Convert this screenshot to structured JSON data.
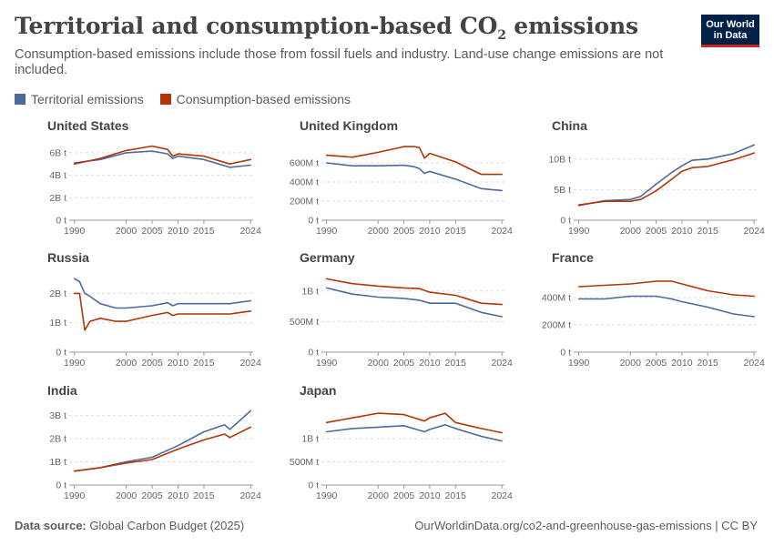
{
  "header": {
    "title_main": "Territorial and consumption-based CO",
    "title_sub": "2",
    "title_tail": " emissions",
    "subtitle": "Consumption-based emissions include those from fossil fuels and industry. Land-use change emissions are not included.",
    "logo_line1": "Our World",
    "logo_line2": "in Data"
  },
  "legend": {
    "items": [
      {
        "label": "Territorial emissions",
        "color": "#4c6a9c"
      },
      {
        "label": "Consumption-based emissions",
        "color": "#b13507"
      }
    ]
  },
  "footer": {
    "source_label": "Data source:",
    "source_value": " Global Carbon Budget (2025)",
    "url": "OurWorldinData.org/co2-and-greenhouse-gas-emissions | CC BY"
  },
  "chart_data": [
    {
      "type": "line",
      "title": "United States",
      "x": [
        1990,
        1995,
        2000,
        2005,
        2008,
        2009,
        2010,
        2015,
        2020,
        2024
      ],
      "ylim": [
        0,
        6800000000.0
      ],
      "yticks": [
        {
          "value": 0,
          "label": "0 t"
        },
        {
          "value": 2000000000.0,
          "label": "2B t"
        },
        {
          "value": 4000000000.0,
          "label": "4B t"
        },
        {
          "value": 6000000000.0,
          "label": "6B t"
        }
      ],
      "xticks": [
        1990,
        2000,
        2005,
        2010,
        2015,
        2024
      ],
      "series": [
        {
          "name": "Territorial emissions",
          "values": [
            5100000000.0,
            5400000000.0,
            6000000000.0,
            6150000000.0,
            5900000000.0,
            5500000000.0,
            5700000000.0,
            5400000000.0,
            4700000000.0,
            4900000000.0
          ]
        },
        {
          "name": "Consumption-based emissions",
          "values": [
            5000000000.0,
            5500000000.0,
            6200000000.0,
            6600000000.0,
            6300000000.0,
            5700000000.0,
            5900000000.0,
            5700000000.0,
            5000000000.0,
            5400000000.0
          ]
        }
      ]
    },
    {
      "type": "line",
      "title": "United Kingdom",
      "x": [
        1990,
        1995,
        2000,
        2005,
        2007,
        2008,
        2009,
        2010,
        2015,
        2020,
        2024
      ],
      "ylim": [
        0,
        800000000.0
      ],
      "yticks": [
        {
          "value": 0,
          "label": "0 t"
        },
        {
          "value": 200000000.0,
          "label": "200M t"
        },
        {
          "value": 400000000.0,
          "label": "400M t"
        },
        {
          "value": 600000000.0,
          "label": "600M t"
        }
      ],
      "xticks": [
        1990,
        2000,
        2005,
        2010,
        2015,
        2024
      ],
      "series": [
        {
          "name": "Territorial emissions",
          "values": [
            600000000.0,
            570000000.0,
            570000000.0,
            575000000.0,
            560000000.0,
            540000000.0,
            490000000.0,
            510000000.0,
            430000000.0,
            330000000.0,
            310000000.0
          ]
        },
        {
          "name": "Consumption-based emissions",
          "values": [
            680000000.0,
            660000000.0,
            710000000.0,
            770000000.0,
            770000000.0,
            760000000.0,
            650000000.0,
            700000000.0,
            610000000.0,
            480000000.0,
            480000000.0
          ]
        }
      ]
    },
    {
      "type": "line",
      "title": "China",
      "x": [
        1990,
        1995,
        2000,
        2002,
        2005,
        2008,
        2010,
        2012,
        2015,
        2020,
        2024
      ],
      "ylim": [
        0,
        12500000000.0
      ],
      "yticks": [
        {
          "value": 0,
          "label": "0 t"
        },
        {
          "value": 5000000000.0,
          "label": "5B t"
        },
        {
          "value": 10000000000.0,
          "label": "10B t"
        }
      ],
      "xticks": [
        1990,
        2000,
        2005,
        2010,
        2015,
        2024
      ],
      "series": [
        {
          "name": "Territorial emissions",
          "values": [
            2400000000.0,
            3200000000.0,
            3400000000.0,
            3900000000.0,
            5900000000.0,
            7800000000.0,
            8900000000.0,
            9800000000.0,
            10000000000.0,
            10900000000.0,
            12300000000.0
          ]
        },
        {
          "name": "Consumption-based emissions",
          "values": [
            2500000000.0,
            3100000000.0,
            3100000000.0,
            3400000000.0,
            4800000000.0,
            6700000000.0,
            8000000000.0,
            8600000000.0,
            8800000000.0,
            9900000000.0,
            11000000000.0
          ]
        }
      ]
    },
    {
      "type": "line",
      "title": "Russia",
      "x": [
        1990,
        1991,
        1992,
        1993,
        1995,
        1998,
        2000,
        2005,
        2008,
        2009,
        2010,
        2015,
        2020,
        2024
      ],
      "ylim": [
        0,
        2600000000.0
      ],
      "yticks": [
        {
          "value": 0,
          "label": "0 t"
        },
        {
          "value": 1000000000.0,
          "label": "1B t"
        },
        {
          "value": 2000000000.0,
          "label": "2B t"
        }
      ],
      "xticks": [
        1990,
        2000,
        2005,
        2010,
        2015,
        2024
      ],
      "series": [
        {
          "name": "Territorial emissions",
          "values": [
            2500000000.0,
            2400000000.0,
            2000000000.0,
            1900000000.0,
            1650000000.0,
            1500000000.0,
            1500000000.0,
            1580000000.0,
            1680000000.0,
            1580000000.0,
            1650000000.0,
            1650000000.0,
            1650000000.0,
            1750000000.0
          ]
        },
        {
          "name": "Consumption-based emissions",
          "values": [
            2000000000.0,
            2000000000.0,
            750000000.0,
            1050000000.0,
            1150000000.0,
            1050000000.0,
            1050000000.0,
            1250000000.0,
            1350000000.0,
            1250000000.0,
            1300000000.0,
            1300000000.0,
            1300000000.0,
            1400000000.0
          ]
        }
      ]
    },
    {
      "type": "line",
      "title": "Germany",
      "x": [
        1990,
        1995,
        2000,
        2005,
        2008,
        2010,
        2015,
        2020,
        2024
      ],
      "ylim": [
        0,
        1250000000.0
      ],
      "yticks": [
        {
          "value": 0,
          "label": "0 t"
        },
        {
          "value": 500000000.0,
          "label": "500M t"
        },
        {
          "value": 1000000000.0,
          "label": "1B t"
        }
      ],
      "xticks": [
        1990,
        2000,
        2005,
        2010,
        2015,
        2024
      ],
      "series": [
        {
          "name": "Territorial emissions",
          "values": [
            1050000000.0,
            950000000.0,
            900000000.0,
            880000000.0,
            850000000.0,
            800000000.0,
            800000000.0,
            650000000.0,
            580000000.0
          ]
        },
        {
          "name": "Consumption-based emissions",
          "values": [
            1200000000.0,
            1120000000.0,
            1080000000.0,
            1050000000.0,
            1040000000.0,
            980000000.0,
            930000000.0,
            800000000.0,
            780000000.0
          ]
        }
      ]
    },
    {
      "type": "line",
      "title": "France",
      "x": [
        1990,
        1995,
        2000,
        2005,
        2008,
        2010,
        2015,
        2020,
        2024
      ],
      "ylim": [
        0,
        560000000.0
      ],
      "yticks": [
        {
          "value": 0,
          "label": "0 t"
        },
        {
          "value": 200000000.0,
          "label": "200M t"
        },
        {
          "value": 400000000.0,
          "label": "400M t"
        }
      ],
      "xticks": [
        1990,
        2000,
        2005,
        2010,
        2015,
        2024
      ],
      "series": [
        {
          "name": "Territorial emissions",
          "values": [
            390000000.0,
            390000000.0,
            410000000.0,
            410000000.0,
            390000000.0,
            370000000.0,
            330000000.0,
            280000000.0,
            260000000.0
          ]
        },
        {
          "name": "Consumption-based emissions",
          "values": [
            480000000.0,
            490000000.0,
            500000000.0,
            520000000.0,
            520000000.0,
            500000000.0,
            450000000.0,
            420000000.0,
            410000000.0
          ]
        }
      ]
    },
    {
      "type": "line",
      "title": "India",
      "x": [
        1990,
        1995,
        2000,
        2005,
        2010,
        2015,
        2019,
        2020,
        2024
      ],
      "ylim": [
        0,
        3300000000.0
      ],
      "yticks": [
        {
          "value": 0,
          "label": "0 t"
        },
        {
          "value": 1000000000.0,
          "label": "1B t"
        },
        {
          "value": 2000000000.0,
          "label": "2B t"
        },
        {
          "value": 3000000000.0,
          "label": "3B t"
        }
      ],
      "xticks": [
        1990,
        2000,
        2005,
        2010,
        2015,
        2024
      ],
      "series": [
        {
          "name": "Territorial emissions",
          "values": [
            600000000.0,
            750000000.0,
            1000000000.0,
            1200000000.0,
            1700000000.0,
            2300000000.0,
            2600000000.0,
            2400000000.0,
            3200000000.0
          ]
        },
        {
          "name": "Consumption-based emissions",
          "values": [
            600000000.0,
            750000000.0,
            950000000.0,
            1100000000.0,
            1550000000.0,
            1950000000.0,
            2200000000.0,
            2050000000.0,
            2500000000.0
          ]
        }
      ]
    },
    {
      "type": "line",
      "title": "Japan",
      "x": [
        1990,
        1995,
        2000,
        2005,
        2009,
        2010,
        2013,
        2015,
        2020,
        2024
      ],
      "ylim": [
        0,
        1650000000.0
      ],
      "yticks": [
        {
          "value": 0,
          "label": "0 t"
        },
        {
          "value": 500000000.0,
          "label": "500M t"
        },
        {
          "value": 1000000000.0,
          "label": "1B t"
        }
      ],
      "xticks": [
        1990,
        2000,
        2005,
        2010,
        2015,
        2024
      ],
      "series": [
        {
          "name": "Territorial emissions",
          "values": [
            1150000000.0,
            1220000000.0,
            1250000000.0,
            1280000000.0,
            1150000000.0,
            1200000000.0,
            1300000000.0,
            1220000000.0,
            1050000000.0,
            950000000.0
          ]
        },
        {
          "name": "Consumption-based emissions",
          "values": [
            1350000000.0,
            1450000000.0,
            1550000000.0,
            1520000000.0,
            1380000000.0,
            1450000000.0,
            1550000000.0,
            1350000000.0,
            1220000000.0,
            1130000000.0
          ]
        }
      ]
    }
  ]
}
